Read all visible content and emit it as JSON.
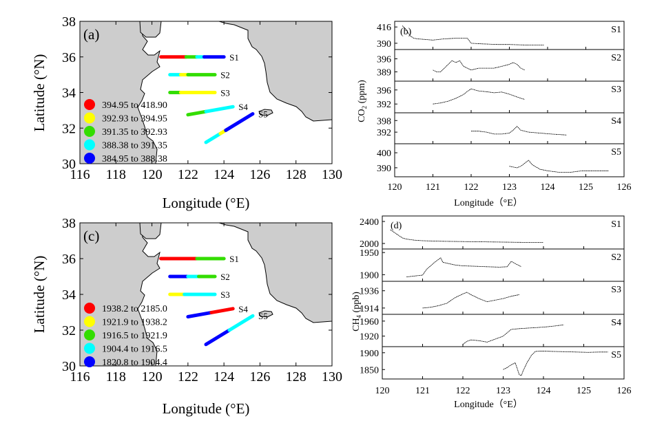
{
  "chart_data": [
    {
      "type": "scatter",
      "panel_label": "(a)",
      "xlabel": "Longitude (°E)",
      "ylabel": "Latitude (°N)",
      "xlim": [
        116,
        130
      ],
      "ylim": [
        30,
        38
      ],
      "x_ticks": [
        116,
        118,
        120,
        122,
        124,
        126,
        128,
        130
      ],
      "y_ticks": [
        30,
        32,
        34,
        36,
        38
      ],
      "legend": {
        "position": "bottom-left",
        "entries": [
          {
            "label": "394.95  to  418.90",
            "color": "#ff0000"
          },
          {
            "label": "392.93  to  394.95",
            "color": "#ffff00"
          },
          {
            "label": "391.35  to  392.93",
            "color": "#33dd00"
          },
          {
            "label": "388.38  to  391.35",
            "color": "#00ffff"
          },
          {
            "label": "384.95  to  388.38",
            "color": "#0000ff"
          }
        ]
      },
      "tracks": [
        {
          "name": "S1",
          "x": [
            120.5,
            124.0
          ],
          "y": [
            36.0,
            36.0
          ],
          "segments": [
            {
              "x0": 120.5,
              "x1": 121.9,
              "c": 0
            },
            {
              "x0": 121.9,
              "x1": 122.5,
              "c": 2
            },
            {
              "x0": 122.5,
              "x1": 122.9,
              "c": 3
            },
            {
              "x0": 122.9,
              "x1": 124.0,
              "c": 4
            }
          ]
        },
        {
          "name": "S2",
          "x": [
            121.0,
            123.5
          ],
          "y": [
            35.0,
            35.0
          ],
          "segments": [
            {
              "x0": 121.0,
              "x1": 121.6,
              "c": 3
            },
            {
              "x0": 121.6,
              "x1": 122.0,
              "c": 1
            },
            {
              "x0": 122.0,
              "x1": 123.5,
              "c": 2
            }
          ]
        },
        {
          "name": "S3",
          "x": [
            121.0,
            123.5
          ],
          "y": [
            34.0,
            34.0
          ],
          "segments": [
            {
              "x0": 121.0,
              "x1": 121.6,
              "c": 2
            },
            {
              "x0": 121.6,
              "x1": 123.5,
              "c": 1
            }
          ]
        },
        {
          "name": "S4",
          "x": [
            122.0,
            124.5
          ],
          "y": [
            32.75,
            33.2
          ],
          "segments": [
            {
              "x0": 122.0,
              "x1": 123.0,
              "c": 2
            },
            {
              "x0": 123.0,
              "x1": 124.5,
              "c": 3
            }
          ]
        },
        {
          "name": "S5",
          "x": [
            123.0,
            125.6
          ],
          "y": [
            31.2,
            32.8
          ],
          "segments": [
            {
              "x0": 123.0,
              "x1": 123.8,
              "c": 3
            },
            {
              "x0": 123.8,
              "x1": 124.1,
              "c": 1
            },
            {
              "x0": 124.1,
              "x1": 125.6,
              "c": 4
            }
          ]
        }
      ]
    },
    {
      "type": "scatter",
      "panel_label": "(c)",
      "xlabel": "Longitude (°E)",
      "ylabel": "Latitude (°N)",
      "xlim": [
        116,
        130
      ],
      "ylim": [
        30,
        38
      ],
      "x_ticks": [
        116,
        118,
        120,
        122,
        124,
        126,
        128,
        130
      ],
      "y_ticks": [
        30,
        32,
        34,
        36,
        38
      ],
      "legend": {
        "position": "bottom-left",
        "entries": [
          {
            "label": "1938.2  to  2185.0",
            "color": "#ff0000"
          },
          {
            "label": "1921.9  to  1938.2",
            "color": "#ffff00"
          },
          {
            "label": "1916.5  to  1921.9",
            "color": "#33dd00"
          },
          {
            "label": "1904.4  to  1916.5",
            "color": "#00ffff"
          },
          {
            "label": "1820.8  to  1904.4",
            "color": "#0000ff"
          }
        ]
      },
      "tracks": [
        {
          "name": "S1",
          "x": [
            120.5,
            124.0
          ],
          "y": [
            36.0,
            36.0
          ],
          "segments": [
            {
              "x0": 120.5,
              "x1": 122.5,
              "c": 0
            },
            {
              "x0": 122.5,
              "x1": 124.0,
              "c": 2
            }
          ]
        },
        {
          "name": "S2",
          "x": [
            121.0,
            123.5
          ],
          "y": [
            35.0,
            35.0
          ],
          "segments": [
            {
              "x0": 121.0,
              "x1": 122.0,
              "c": 4
            },
            {
              "x0": 122.0,
              "x1": 122.6,
              "c": 3
            },
            {
              "x0": 122.6,
              "x1": 123.5,
              "c": 2
            }
          ]
        },
        {
          "name": "S3",
          "x": [
            121.0,
            123.5
          ],
          "y": [
            34.0,
            34.0
          ],
          "segments": [
            {
              "x0": 121.0,
              "x1": 121.8,
              "c": 1
            },
            {
              "x0": 121.8,
              "x1": 123.5,
              "c": 3
            }
          ]
        },
        {
          "name": "S4",
          "x": [
            122.0,
            124.5
          ],
          "y": [
            32.75,
            33.2
          ],
          "segments": [
            {
              "x0": 122.0,
              "x1": 123.3,
              "c": 4
            },
            {
              "x0": 123.3,
              "x1": 124.5,
              "c": 0
            }
          ]
        },
        {
          "name": "S5",
          "x": [
            123.0,
            125.6
          ],
          "y": [
            31.2,
            32.8
          ],
          "segments": [
            {
              "x0": 123.0,
              "x1": 124.3,
              "c": 4
            },
            {
              "x0": 124.3,
              "x1": 125.6,
              "c": 3
            }
          ]
        }
      ]
    },
    {
      "type": "line",
      "panel_label": "(b)",
      "ylabel": "CO2 (ppm)",
      "xlabel": "Longitude（°E）",
      "xlim": [
        120,
        126
      ],
      "x_ticks": [
        120,
        121,
        122,
        123,
        124,
        125,
        126
      ],
      "series": [
        {
          "name": "S1",
          "yticks": [
            "416",
            "390"
          ],
          "ylim": [
            380,
            425
          ],
          "x": [
            120.2,
            120.3,
            120.4,
            120.5,
            120.6,
            120.8,
            121.0,
            121.3,
            121.6,
            121.9,
            122.0,
            122.3,
            122.7,
            123.0,
            123.5,
            123.9
          ],
          "y": [
            418,
            412,
            402,
            398,
            397,
            396,
            395,
            397,
            398,
            398,
            390,
            389,
            388,
            388,
            387,
            387
          ]
        },
        {
          "name": "S2",
          "yticks": [
            "396",
            "389"
          ],
          "ylim": [
            384,
            401
          ],
          "x": [
            121.0,
            121.1,
            121.2,
            121.3,
            121.4,
            121.5,
            121.6,
            121.7,
            121.8,
            121.9,
            122.0,
            122.2,
            122.4,
            122.6,
            122.8,
            123.0,
            123.1,
            123.2,
            123.3,
            123.4
          ],
          "y": [
            390,
            389,
            389,
            391,
            393,
            395,
            394,
            395,
            392,
            391,
            390,
            391,
            391,
            391,
            392,
            393,
            394,
            393,
            391,
            390
          ]
        },
        {
          "name": "S3",
          "yticks": [
            "396",
            "392"
          ],
          "ylim": [
            389.5,
            398.5
          ],
          "x": [
            121.0,
            121.2,
            121.4,
            121.6,
            121.8,
            121.9,
            122.0,
            122.1,
            122.2,
            122.4,
            122.6,
            122.8,
            123.0,
            123.2,
            123.4
          ],
          "y": [
            392,
            392.3,
            392.8,
            393.6,
            394.7,
            395.6,
            396.3,
            396.0,
            395.7,
            395.5,
            395.2,
            395.4,
            394.8,
            394.0,
            393.3
          ]
        },
        {
          "name": "S4",
          "yticks": [
            "398",
            "392"
          ],
          "ylim": [
            386,
            402
          ],
          "x": [
            122.0,
            122.2,
            122.4,
            122.6,
            122.8,
            123.0,
            123.1,
            123.2,
            123.3,
            123.5,
            123.8,
            124.1,
            124.5
          ],
          "y": [
            392.5,
            392.5,
            392,
            391,
            391,
            391.5,
            393,
            395,
            393,
            392,
            391.5,
            391,
            390.5
          ]
        },
        {
          "name": "S5",
          "yticks": [
            "400",
            "390"
          ],
          "ylim": [
            384,
            406
          ],
          "x": [
            123.0,
            123.2,
            123.3,
            123.4,
            123.5,
            123.6,
            123.8,
            124.0,
            124.3,
            124.6,
            124.9,
            125.2,
            125.6
          ],
          "y": [
            391,
            390,
            391,
            393,
            395,
            392,
            389,
            388,
            387,
            387,
            388,
            388,
            388
          ]
        }
      ]
    },
    {
      "type": "line",
      "panel_label": "(d)",
      "ylabel": "CH4 (ppb)",
      "xlabel": "Longitude（°E）",
      "xlim": [
        120,
        126
      ],
      "x_ticks": [
        120,
        121,
        122,
        123,
        124,
        125,
        126
      ],
      "series": [
        {
          "name": "S1",
          "yticks": [
            "2400",
            "2000"
          ],
          "ylim": [
            1900,
            2500
          ],
          "x": [
            120.2,
            120.3,
            120.4,
            120.5,
            120.6,
            120.8,
            121.0,
            121.5,
            122.0,
            122.5,
            123.0,
            123.5,
            124.0
          ],
          "y": [
            2250,
            2200,
            2150,
            2100,
            2080,
            2060,
            2050,
            2040,
            2035,
            2030,
            2025,
            2020,
            2020
          ]
        },
        {
          "name": "S2",
          "yticks": [
            "1950",
            "1900"
          ],
          "ylim": [
            1885,
            1958
          ],
          "x": [
            120.6,
            120.8,
            121.0,
            121.1,
            121.2,
            121.3,
            121.45,
            121.5,
            121.6,
            121.8,
            122.0,
            122.3,
            122.6,
            122.9,
            123.1,
            123.2,
            123.3,
            123.45
          ],
          "y": [
            1895,
            1897,
            1899,
            1912,
            1920,
            1928,
            1938,
            1928,
            1926,
            1922,
            1920,
            1919,
            1918,
            1917,
            1918,
            1930,
            1925,
            1918
          ]
        },
        {
          "name": "S3",
          "yticks": [
            "1936",
            "1914"
          ],
          "ylim": [
            1906,
            1948
          ],
          "x": [
            121.0,
            121.2,
            121.4,
            121.6,
            121.8,
            122.0,
            122.1,
            122.2,
            122.4,
            122.6,
            122.8,
            123.0,
            123.2,
            123.4
          ],
          "y": [
            1914,
            1915,
            1917,
            1920,
            1927,
            1932,
            1934,
            1931,
            1926,
            1922,
            1924,
            1926,
            1929,
            1931
          ]
        },
        {
          "name": "S4",
          "yticks": [
            "1960",
            "1920"
          ],
          "ylim": [
            1892,
            1978
          ],
          "x": [
            122.0,
            122.1,
            122.2,
            122.4,
            122.6,
            122.8,
            123.0,
            123.2,
            123.4,
            123.7,
            124.0,
            124.2,
            124.5
          ],
          "y": [
            1898,
            1906,
            1910,
            1908,
            1904,
            1912,
            1920,
            1938,
            1940,
            1942,
            1944,
            1946,
            1950
          ]
        },
        {
          "name": "S5",
          "yticks": [
            "1900",
            "1850"
          ],
          "ylim": [
            1822,
            1918
          ],
          "x": [
            123.0,
            123.1,
            123.2,
            123.3,
            123.4,
            123.45,
            123.5,
            123.6,
            123.7,
            123.8,
            124.0,
            124.2,
            124.5,
            124.8,
            125.1,
            125.4,
            125.6
          ],
          "y": [
            1850,
            1856,
            1864,
            1870,
            1835,
            1832,
            1848,
            1872,
            1892,
            1904,
            1905,
            1904,
            1903,
            1902,
            1901,
            1902,
            1902
          ]
        }
      ]
    }
  ]
}
